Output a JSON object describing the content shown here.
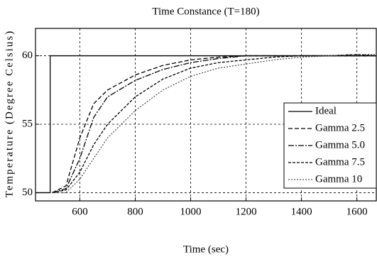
{
  "chart_data": {
    "type": "line",
    "title": "Time Constance (T=180)",
    "x_label": "Time (sec)",
    "y_label": "Temperature (Degree Celsius)",
    "xlim": [
      440,
      1670
    ],
    "ylim": [
      49.4,
      62
    ],
    "xticks": [
      600,
      800,
      1000,
      1200,
      1400,
      1600
    ],
    "yticks": [
      50,
      55,
      60
    ],
    "grid": true,
    "legend": "lower-right",
    "series": [
      {
        "name": "Ideal",
        "color": "#000000",
        "dash": "none",
        "x": [
          440,
          493,
          493,
          1670
        ],
        "values": [
          50,
          50,
          60,
          60
        ]
      },
      {
        "name": "Gamma 2.5",
        "color": "#000000",
        "dash": "6,3",
        "x": [
          500,
          550,
          600,
          650,
          700,
          800,
          900,
          1000,
          1100,
          1200,
          1300,
          1400,
          1500,
          1600,
          1670
        ],
        "values": [
          50,
          50.5,
          54,
          56.5,
          57.5,
          58.6,
          59.3,
          59.7,
          59.9,
          60,
          60,
          60,
          60,
          60,
          60
        ]
      },
      {
        "name": "Gamma 5.0",
        "color": "#000000",
        "dash": "8,2,2,2",
        "x": [
          500,
          550,
          600,
          650,
          700,
          800,
          900,
          1000,
          1100,
          1200,
          1300,
          1400,
          1500,
          1600,
          1670
        ],
        "values": [
          50,
          50.3,
          52.5,
          55.5,
          57,
          58.2,
          59,
          59.5,
          59.8,
          60,
          60,
          60,
          60,
          60,
          60
        ]
      },
      {
        "name": "Gamma 7.5",
        "color": "#000000",
        "dash": "4,2",
        "x": [
          500,
          550,
          600,
          650,
          700,
          800,
          900,
          1000,
          1100,
          1200,
          1300,
          1400,
          1500,
          1600,
          1670
        ],
        "values": [
          50,
          50.2,
          51.5,
          53.5,
          55,
          57,
          58.3,
          59.1,
          59.5,
          59.7,
          59.9,
          60,
          60,
          60.1,
          60
        ]
      },
      {
        "name": "Gamma 10",
        "color": "#555555",
        "dash": "2,2",
        "x": [
          500,
          550,
          600,
          650,
          700,
          800,
          900,
          1000,
          1100,
          1200,
          1300,
          1400,
          1500,
          1600,
          1670
        ],
        "values": [
          50,
          50,
          51,
          52.5,
          54,
          56,
          57.5,
          58.5,
          59.1,
          59.4,
          59.7,
          59.9,
          60,
          60.1,
          60.1
        ]
      }
    ]
  }
}
